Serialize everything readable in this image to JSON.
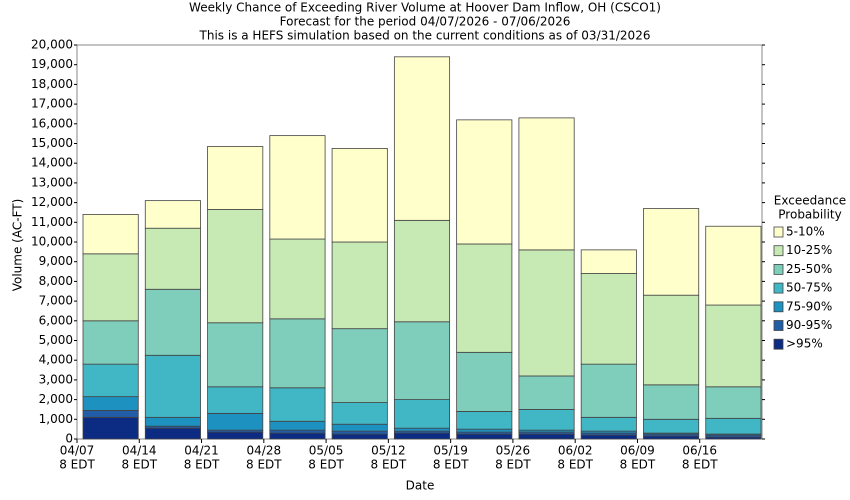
{
  "chart_data": {
    "type": "stacked_bar",
    "title": [
      "Weekly Chance of Exceeding River Volume at Hoover Dam Inflow, OH (CSCO1)",
      "Forecast for the period 04/07/2026 - 07/06/2026",
      "This is a HEFS simulation based on the current conditions as of 03/31/2026"
    ],
    "x_label": "Date",
    "y_label": "Volume (AC-FT)",
    "legend_title": [
      "Exceedance",
      "Probability"
    ],
    "categories": [
      [
        "04/07",
        "8 EDT"
      ],
      [
        "04/14",
        "8 EDT"
      ],
      [
        "04/21",
        "8 EDT"
      ],
      [
        "04/28",
        "8 EDT"
      ],
      [
        "05/05",
        "8 EDT"
      ],
      [
        "05/12",
        "8 EDT"
      ],
      [
        "05/19",
        "8 EDT"
      ],
      [
        "05/26",
        "8 EDT"
      ],
      [
        "06/02",
        "8 EDT"
      ],
      [
        "06/09",
        "8 EDT"
      ],
      [
        "06/16",
        "8 EDT"
      ]
    ],
    "series": [
      {
        "name": ">95%",
        "color": "#0c2c84",
        "values": [
          1100,
          550,
          350,
          300,
          250,
          300,
          250,
          250,
          200,
          150,
          100
        ]
      },
      {
        "name": "90-95%",
        "color": "#225ea8",
        "values": [
          350,
          100,
          100,
          150,
          150,
          100,
          100,
          100,
          100,
          100,
          100
        ]
      },
      {
        "name": "75-90%",
        "color": "#1d91c0",
        "values": [
          700,
          450,
          850,
          450,
          350,
          150,
          150,
          100,
          100,
          50,
          50
        ]
      },
      {
        "name": "50-75%",
        "color": "#41b6c4",
        "values": [
          1650,
          3150,
          1350,
          1700,
          1100,
          1450,
          900,
          1050,
          700,
          700,
          800
        ]
      },
      {
        "name": "25-50%",
        "color": "#7fcdbb",
        "values": [
          2200,
          3350,
          3250,
          3500,
          3750,
          3950,
          3000,
          1700,
          2700,
          1750,
          1600
        ]
      },
      {
        "name": "10-25%",
        "color": "#c7e9b4",
        "values": [
          3400,
          3100,
          5750,
          4050,
          4400,
          5150,
          5500,
          6400,
          4600,
          4550,
          4150
        ]
      },
      {
        "name": "5-10%",
        "color": "#ffffcc",
        "values": [
          2000,
          1400,
          3200,
          5250,
          4750,
          8300,
          6300,
          6700,
          1200,
          4400,
          4000
        ]
      }
    ],
    "ylim": [
      0,
      20000
    ],
    "yticks": [
      0,
      {
        "value": 1000,
        "label": "1,000"
      },
      {
        "value": 2000,
        "label": "2,000"
      },
      {
        "value": 3000,
        "label": "3,000"
      },
      {
        "value": 4000,
        "label": "4,000"
      },
      {
        "value": 5000,
        "label": "5,000"
      },
      {
        "value": 6000,
        "label": "6,000"
      },
      {
        "value": 7000,
        "label": "7,000"
      },
      {
        "value": 8000,
        "label": "8,000"
      },
      {
        "value": 9000,
        "label": "9,000"
      },
      {
        "value": 10000,
        "label": "10,000"
      },
      {
        "value": 11000,
        "label": "11,000"
      },
      {
        "value": 12000,
        "label": "12,000"
      },
      {
        "value": 13000,
        "label": "13,000"
      },
      {
        "value": 14000,
        "label": "14,000"
      },
      {
        "value": 15000,
        "label": "15,000"
      },
      {
        "value": 16000,
        "label": "16,000"
      },
      {
        "value": 17000,
        "label": "17,000"
      },
      {
        "value": 18000,
        "label": "18,000"
      },
      {
        "value": 19000,
        "label": "19,000"
      },
      {
        "value": 20000,
        "label": "20,000"
      }
    ],
    "grid": false
  }
}
